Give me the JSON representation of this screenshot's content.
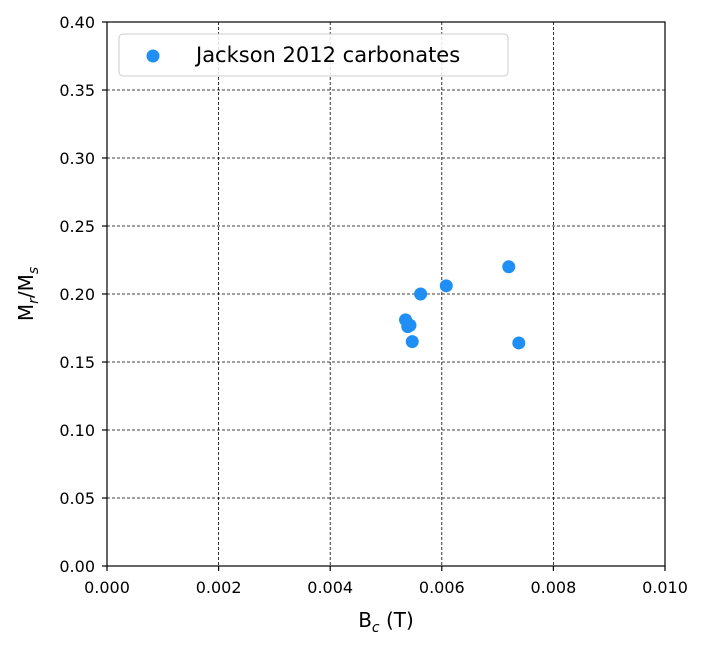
{
  "chart_data": {
    "type": "scatter",
    "xlabel_main": "B",
    "xlabel_sub": "c",
    "xlabel_unit": " (T)",
    "ylabel_main1": "M",
    "ylabel_sub1": "r",
    "ylabel_mid": "/M",
    "ylabel_sub2": "s",
    "xlim": [
      0,
      0.01
    ],
    "ylim": [
      0,
      0.4
    ],
    "x_ticks": [
      "0.000",
      "0.002",
      "0.004",
      "0.006",
      "0.008",
      "0.010"
    ],
    "y_ticks": [
      "0.00",
      "0.05",
      "0.10",
      "0.15",
      "0.20",
      "0.25",
      "0.30",
      "0.35",
      "0.40"
    ],
    "grid": true,
    "legend_position": "top-left",
    "series": [
      {
        "name": "Jackson 2012 carbonates",
        "color": "#1f8ff5",
        "points": [
          {
            "x": 0.00535,
            "y": 0.181
          },
          {
            "x": 0.00539,
            "y": 0.176
          },
          {
            "x": 0.00543,
            "y": 0.177
          },
          {
            "x": 0.00547,
            "y": 0.165
          },
          {
            "x": 0.00562,
            "y": 0.2
          },
          {
            "x": 0.00608,
            "y": 0.206
          },
          {
            "x": 0.0072,
            "y": 0.22
          },
          {
            "x": 0.00738,
            "y": 0.164
          }
        ]
      }
    ]
  }
}
